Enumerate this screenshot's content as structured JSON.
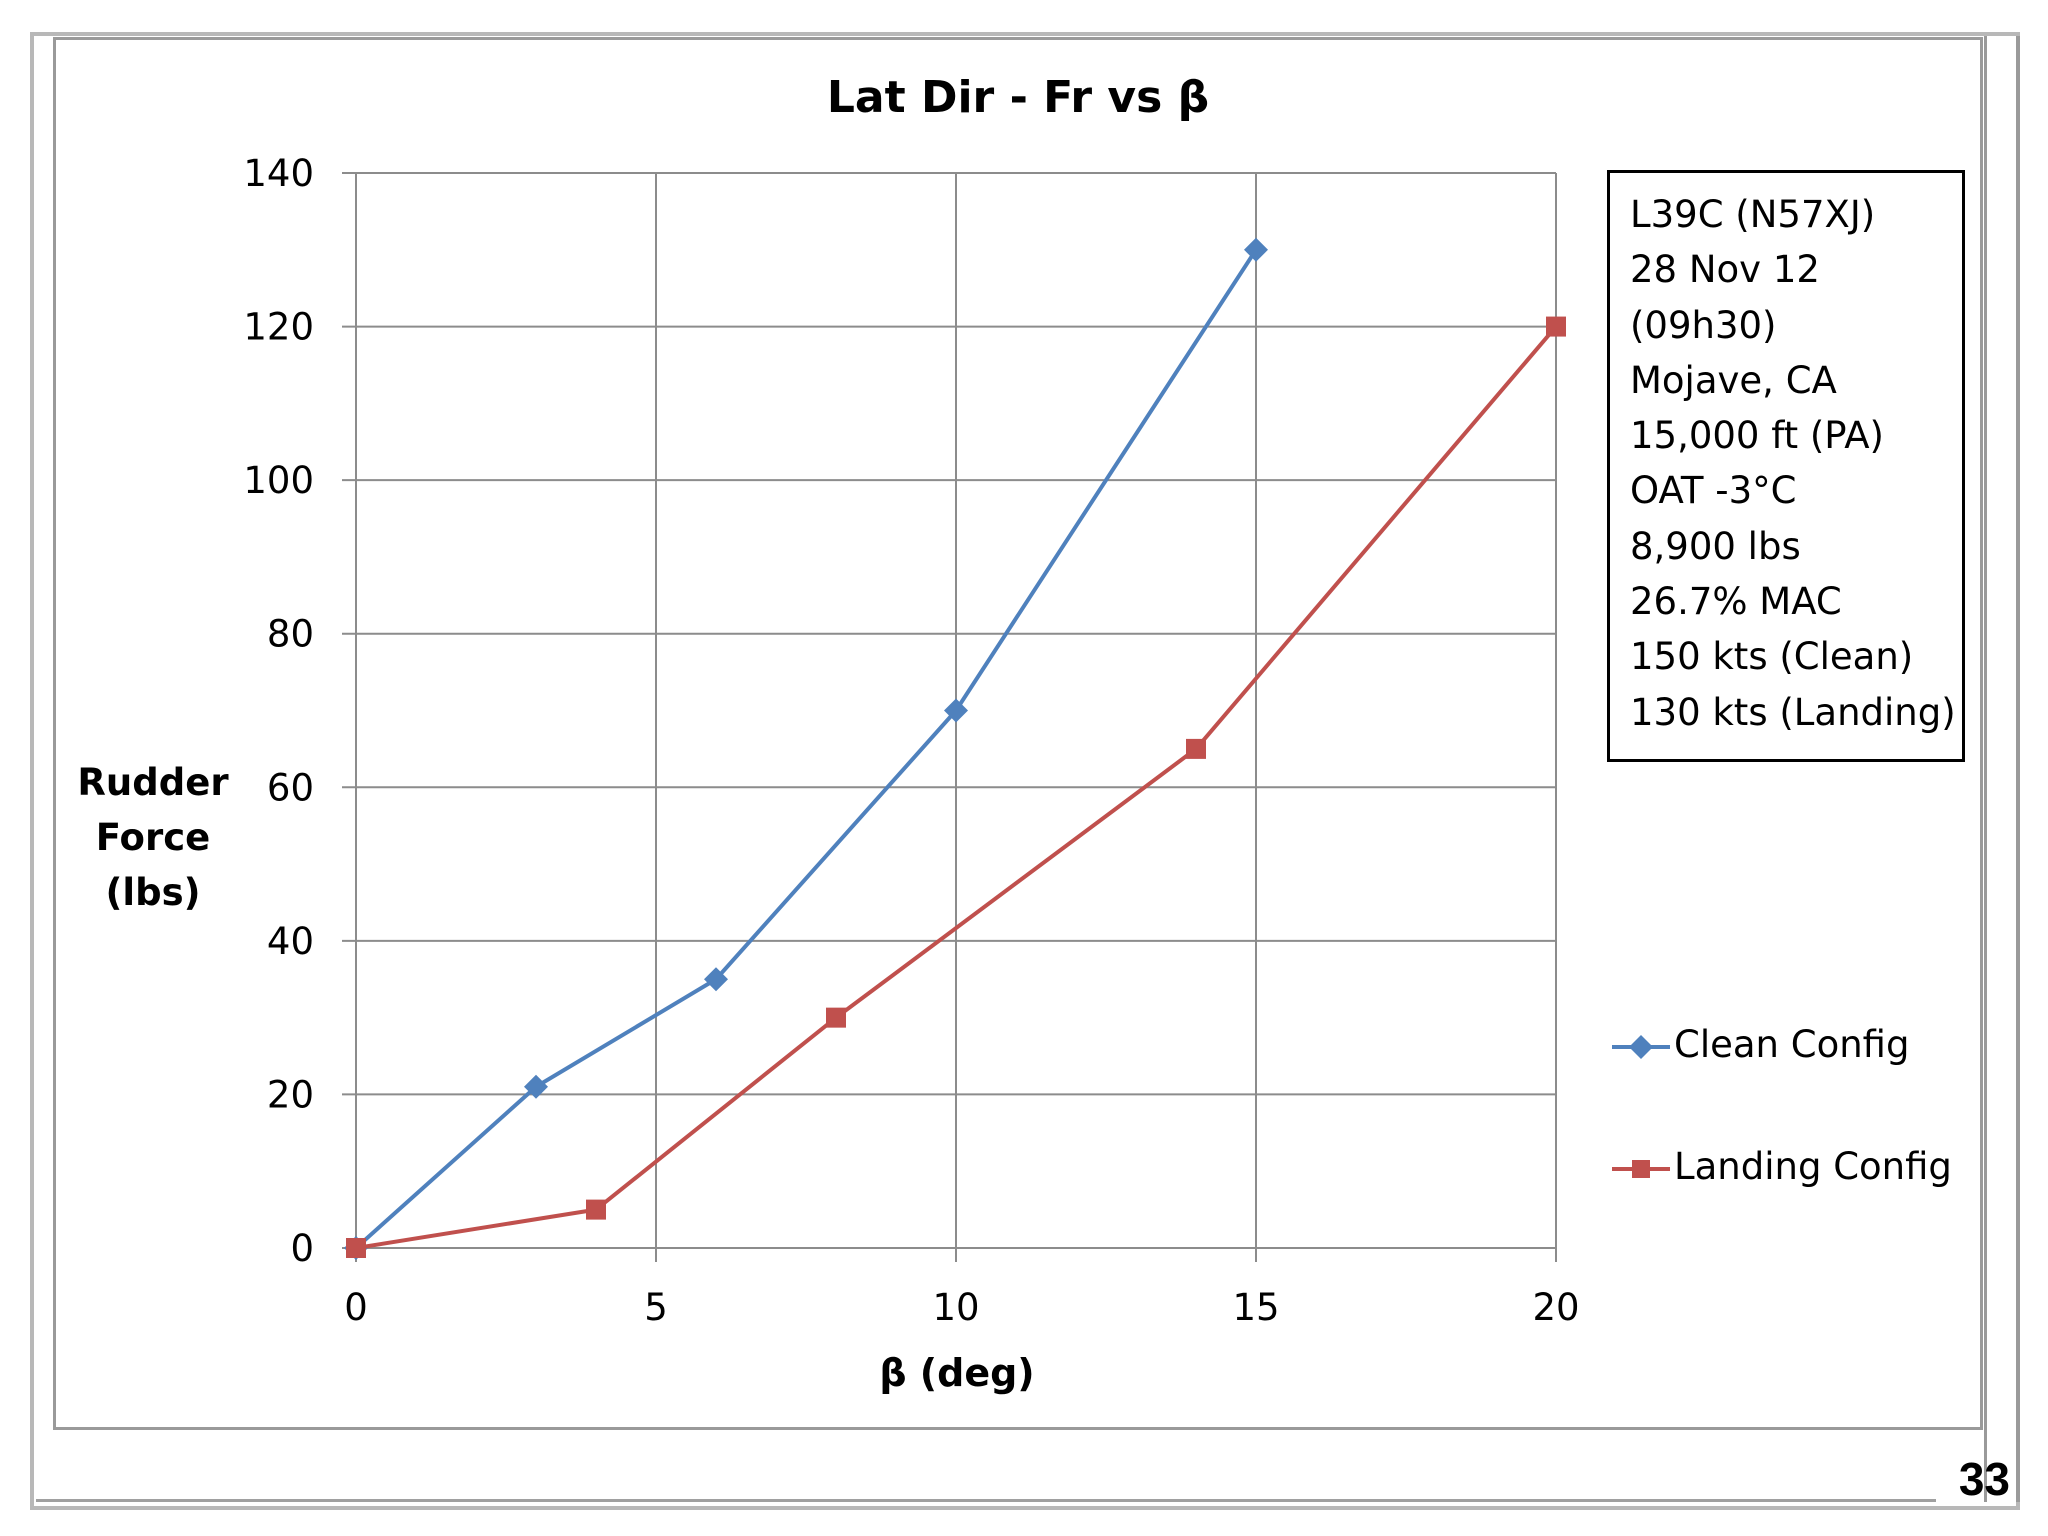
{
  "page": {
    "number": "33"
  },
  "chart_data": {
    "type": "line",
    "title": "Lat Dir - Fr vs β",
    "xlabel": "β (deg)",
    "ylabel": [
      "Rudder",
      "Force",
      "(lbs)"
    ],
    "xlim": [
      0,
      20
    ],
    "ylim": [
      0,
      140
    ],
    "xticks": [
      0,
      5,
      10,
      15,
      20
    ],
    "yticks": [
      0,
      20,
      40,
      60,
      80,
      100,
      120,
      140
    ],
    "grid": true,
    "legend_position": "right",
    "series": [
      {
        "name": "Clean Config",
        "color": "#4f81bd",
        "marker": "diamond",
        "x": [
          0,
          3,
          6,
          10,
          15
        ],
        "y": [
          0,
          21,
          35,
          70,
          130
        ]
      },
      {
        "name": "Landing Config",
        "color": "#c0504d",
        "marker": "square",
        "x": [
          0,
          4,
          8,
          14,
          20
        ],
        "y": [
          0,
          5,
          30,
          65,
          120
        ]
      }
    ],
    "annotation_box": [
      "L39C (N57XJ)",
      "28 Nov 12",
      "(09h30)",
      "Mojave, CA",
      "15,000 ft (PA)",
      "OAT -3°C",
      "8,900 lbs",
      "26.7% MAC",
      "150 kts (Clean)",
      "130 kts (Landing)"
    ]
  }
}
